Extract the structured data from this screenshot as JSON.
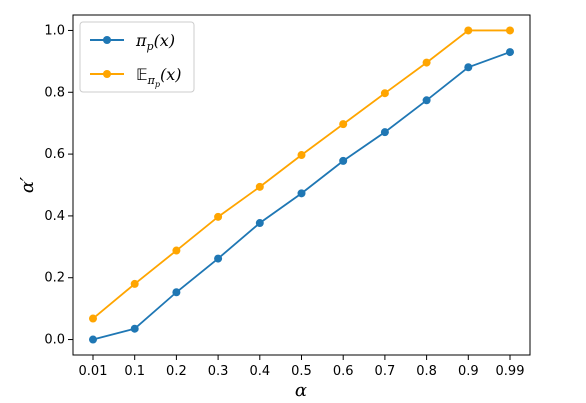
{
  "chart_data": {
    "type": "line",
    "categories": [
      "0.01",
      "0.1",
      "0.2",
      "0.3",
      "0.4",
      "0.5",
      "0.6",
      "0.7",
      "0.8",
      "0.9",
      "0.99"
    ],
    "series": [
      {
        "name": "π_p(x)",
        "color": "#1f77b4",
        "values": [
          0.0,
          0.035,
          0.153,
          0.262,
          0.377,
          0.473,
          0.578,
          0.671,
          0.774,
          0.881,
          0.93
        ]
      },
      {
        "name": "E_{π_p}(x)",
        "color": "#ffa500",
        "values": [
          0.068,
          0.18,
          0.288,
          0.397,
          0.494,
          0.597,
          0.697,
          0.797,
          0.896,
          1.0,
          1.0
        ]
      }
    ],
    "xlabel": "α",
    "ylabel": "α′",
    "ylim": [
      -0.05,
      1.05
    ],
    "yticks": [
      "0.0",
      "0.2",
      "0.4",
      "0.6",
      "0.8",
      "1.0"
    ],
    "grid": false,
    "legend_position": "top-left"
  }
}
